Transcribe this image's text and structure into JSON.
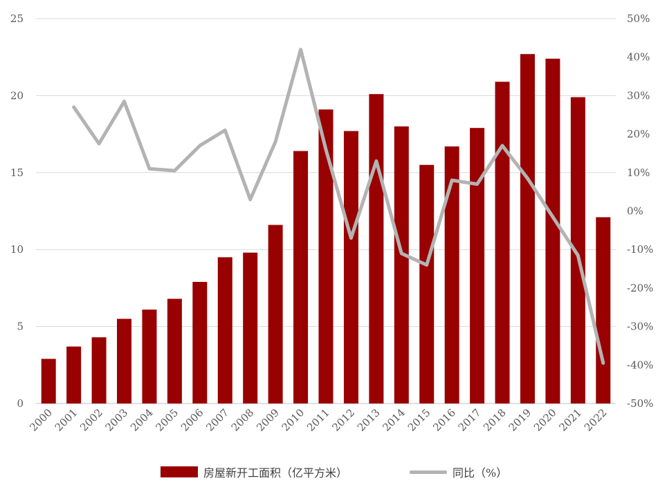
{
  "chart_data": {
    "type": "bar",
    "categories": [
      "2000",
      "2001",
      "2002",
      "2003",
      "2004",
      "2005",
      "2006",
      "2007",
      "2008",
      "2009",
      "2010",
      "2011",
      "2012",
      "2013",
      "2014",
      "2015",
      "2016",
      "2017",
      "2018",
      "2019",
      "2020",
      "2021",
      "2022"
    ],
    "series": [
      {
        "name": "房屋新开工面积（亿平方米）",
        "type": "bar",
        "axis": "left",
        "color": "#990000",
        "values": [
          2.9,
          3.7,
          4.3,
          5.5,
          6.1,
          6.8,
          7.9,
          9.5,
          9.8,
          11.6,
          16.4,
          19.1,
          17.7,
          20.1,
          18.0,
          15.5,
          16.7,
          17.9,
          20.9,
          22.7,
          22.4,
          19.9,
          12.1
        ]
      },
      {
        "name": "同比（%）",
        "type": "line",
        "axis": "right",
        "color": "#b3b3b3",
        "values": [
          null,
          27,
          17.5,
          28.5,
          11,
          10.5,
          17,
          21,
          3,
          18,
          42,
          16,
          -7,
          13,
          -11,
          -14,
          8,
          7,
          17,
          8.5,
          -1.5,
          -11.5,
          -39.5
        ]
      }
    ],
    "y_left": {
      "ylim": [
        0,
        25
      ],
      "ticks": [
        "0",
        "5",
        "10",
        "15",
        "20",
        "25"
      ]
    },
    "y_right": {
      "ylim": [
        -50,
        50
      ],
      "ticks": [
        "-50%",
        "-40%",
        "-30%",
        "-20%",
        "-10%",
        "0%",
        "10%",
        "20%",
        "30%",
        "40%",
        "50%"
      ]
    },
    "grid": true,
    "legend_position": "bottom"
  },
  "legend": {
    "bar_label": "房屋新开工面积（亿平方米）",
    "line_label": "同比（%）",
    "bar_color": "#990000",
    "line_color": "#b3b3b3"
  }
}
